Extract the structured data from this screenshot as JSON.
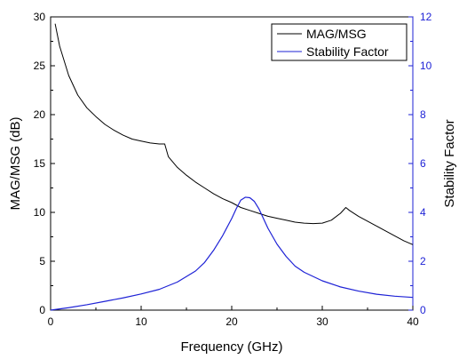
{
  "chart_data": {
    "type": "line",
    "xlabel": "Frequency (GHz)",
    "ylabel_left": "MAG/MSG (dB)",
    "ylabel_right": "Stability Factor",
    "xlim": [
      0,
      40
    ],
    "ylim_left": [
      0,
      30
    ],
    "ylim_right": [
      0,
      12
    ],
    "x_ticks": [
      "0",
      "10",
      "20",
      "30",
      "40"
    ],
    "y_left_ticks": [
      "0",
      "5",
      "10",
      "15",
      "20",
      "25",
      "30"
    ],
    "y_right_ticks": [
      "0",
      "2",
      "4",
      "6",
      "8",
      "10",
      "12"
    ],
    "legend_position": "top-right",
    "grid": false,
    "series": [
      {
        "name": "MAG/MSG",
        "axis": "left",
        "color": "#000000",
        "x": [
          0.5,
          1,
          2,
          3,
          4,
          5,
          6,
          7,
          8,
          9,
          10,
          11,
          12,
          12.6,
          13,
          14,
          15,
          16,
          17,
          18,
          19,
          20,
          21,
          22,
          23,
          24,
          25,
          26,
          27,
          28,
          29,
          30,
          31,
          32,
          32.6,
          33,
          34,
          35,
          36,
          37,
          38,
          39,
          40
        ],
        "values": [
          29.3,
          27.0,
          24.0,
          22.0,
          20.7,
          19.8,
          19.0,
          18.4,
          17.9,
          17.5,
          17.3,
          17.1,
          17.0,
          17.0,
          15.7,
          14.6,
          13.8,
          13.1,
          12.5,
          11.9,
          11.4,
          11.0,
          10.5,
          10.2,
          9.9,
          9.6,
          9.4,
          9.2,
          9.0,
          8.9,
          8.85,
          8.9,
          9.2,
          9.9,
          10.5,
          10.2,
          9.6,
          9.1,
          8.6,
          8.1,
          7.6,
          7.1,
          6.7
        ]
      },
      {
        "name": "Stability Factor",
        "axis": "right",
        "color": "#1e22d6",
        "x": [
          0,
          2,
          4,
          6,
          8,
          10,
          12,
          14,
          16,
          17,
          18,
          19,
          20,
          20.5,
          21,
          21.5,
          22,
          22.5,
          23,
          23.5,
          24,
          25,
          26,
          27,
          28,
          30,
          32,
          34,
          36,
          38,
          40
        ],
        "values": [
          0.0,
          0.1,
          0.22,
          0.36,
          0.5,
          0.66,
          0.85,
          1.15,
          1.6,
          1.95,
          2.45,
          3.05,
          3.75,
          4.15,
          4.5,
          4.62,
          4.6,
          4.45,
          4.15,
          3.75,
          3.35,
          2.7,
          2.2,
          1.8,
          1.55,
          1.2,
          0.95,
          0.78,
          0.65,
          0.57,
          0.52
        ]
      }
    ]
  }
}
